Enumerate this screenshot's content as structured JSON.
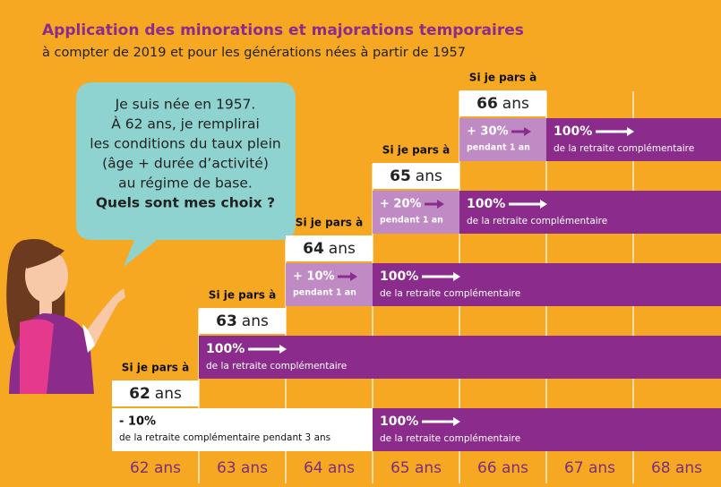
{
  "header": {
    "title": "Application des minorations et majorations temporaires",
    "subtitle": "à compter de 2019 et pour les générations nées à partir de 1957"
  },
  "bubble": {
    "lines": [
      "Je suis née en 1957.",
      "À 62 ans, je remplirai",
      "les conditions du taux plein",
      "(âge + durée d’activité)",
      "au régime de base."
    ],
    "question": "Quels sont mes choix ?"
  },
  "steps": [
    {
      "label": "Si je pars à",
      "age": {
        "number": "62",
        "unit": "ans"
      },
      "adjustment": {
        "amount": "- 10%",
        "note": "de la retraite complémentaire pendant 3 ans"
      },
      "full": {
        "amount": "100%",
        "note": "de la retraite complémentaire"
      }
    },
    {
      "label": "Si je pars à",
      "age": {
        "number": "63",
        "unit": "ans"
      },
      "full": {
        "amount": "100%",
        "note": "de la retraite complémentaire"
      }
    },
    {
      "label": "Si je pars à",
      "age": {
        "number": "64",
        "unit": "ans"
      },
      "adjustment": {
        "amount": "+ 10%",
        "note": "pendant 1 an"
      },
      "full": {
        "amount": "100%",
        "note": "de la retraite complémentaire"
      }
    },
    {
      "label": "Si je pars à",
      "age": {
        "number": "65",
        "unit": "ans"
      },
      "adjustment": {
        "amount": "+ 20%",
        "note": "pendant 1 an"
      },
      "full": {
        "amount": "100%",
        "note": "de la retraite complémentaire"
      }
    },
    {
      "label": "Si je pars à",
      "age": {
        "number": "66",
        "unit": "ans"
      },
      "adjustment": {
        "amount": "+ 30%",
        "note": "pendant 1 an"
      },
      "full": {
        "amount": "100%",
        "note": "de la retraite complémentaire"
      }
    }
  ],
  "axis": [
    "62 ans",
    "63 ans",
    "64 ans",
    "65 ans",
    "66 ans",
    "67 ans",
    "68 ans"
  ]
}
